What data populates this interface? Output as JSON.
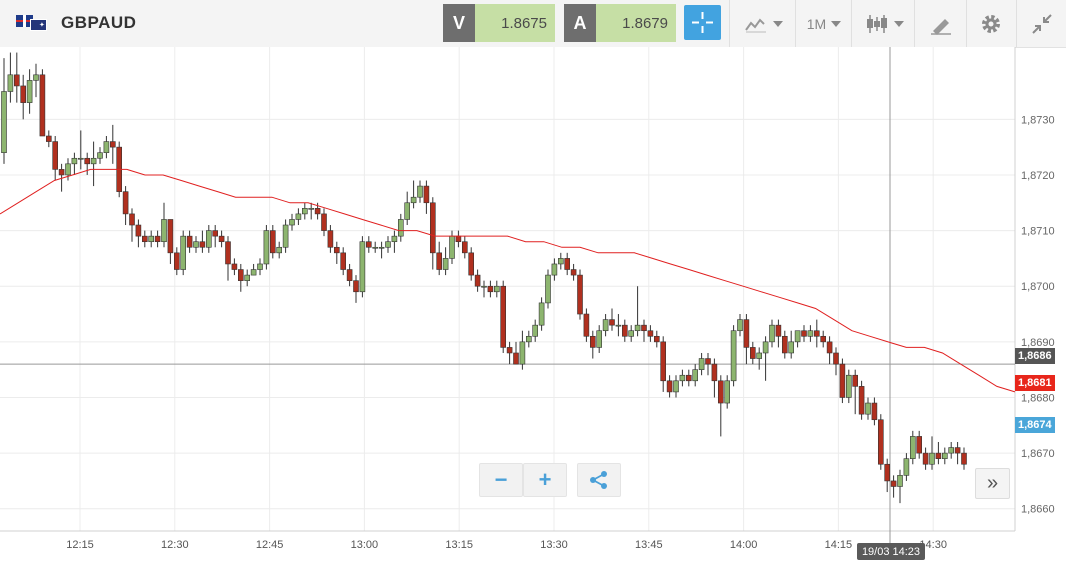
{
  "instrument": {
    "symbol": "GBPAUD",
    "base_flag": "gb-flag-icon",
    "quote_flag": "au-flag-icon"
  },
  "quotes": {
    "sell_label": "V",
    "sell_price": "1.8675",
    "buy_label": "A",
    "buy_price": "1.8679"
  },
  "toolbar": {
    "timeframe_label": "1M",
    "icons": [
      "crosshair-icon",
      "line-chart-icon",
      "candlestick-icon",
      "draw-tool-icon",
      "gear-icon",
      "collapse-icon"
    ]
  },
  "price_labels": {
    "hover": "1,8686",
    "moving_average": "1,8681",
    "last": "1,8674"
  },
  "time_label": "19/03 14:23",
  "colors": {
    "bull": "#8db56f",
    "bear": "#b0301f",
    "ma": "#e02020",
    "accent": "#42a3e0",
    "quote_bg": "#c6dfa5"
  },
  "chart_data": {
    "type": "candlestick",
    "timeframe": "1M",
    "y_ticks": [
      "1,8730",
      "1,8720",
      "1,8710",
      "1,8700",
      "1,8690",
      "1,8680",
      "1,8670",
      "1,8660"
    ],
    "x_ticks": [
      "12:15",
      "12:30",
      "12:45",
      "13:00",
      "13:15",
      "13:30",
      "13:45",
      "14:00",
      "14:15",
      "14:30"
    ],
    "ylim": [
      1.8656,
      1.8743
    ],
    "grid": true,
    "candles": [
      [
        1.8724,
        1.8735,
        1.8722,
        1.8741
      ],
      [
        1.8735,
        1.8738,
        1.8733,
        1.8742
      ],
      [
        1.8738,
        1.8736,
        1.8733,
        1.8742
      ],
      [
        1.8736,
        1.8733,
        1.873,
        1.8738
      ],
      [
        1.8733,
        1.8737,
        1.8731,
        1.8739
      ],
      [
        1.8737,
        1.8738,
        1.8734,
        1.874
      ],
      [
        1.8738,
        1.8727,
        1.8727,
        1.8739
      ],
      [
        1.8727,
        1.8726,
        1.8725,
        1.8728
      ],
      [
        1.8726,
        1.8721,
        1.8719,
        1.8727
      ],
      [
        1.8721,
        1.872,
        1.8717,
        1.8722
      ],
      [
        1.872,
        1.8722,
        1.8719,
        1.8723
      ],
      [
        1.8722,
        1.8723,
        1.872,
        1.8724
      ],
      [
        1.8723,
        1.8723,
        1.8721,
        1.8728
      ],
      [
        1.8723,
        1.8722,
        1.872,
        1.8724
      ],
      [
        1.8722,
        1.8723,
        1.8718,
        1.8726
      ],
      [
        1.8723,
        1.8724,
        1.8722,
        1.8725
      ],
      [
        1.8724,
        1.8726,
        1.8723,
        1.8727
      ],
      [
        1.8726,
        1.8725,
        1.8722,
        1.8729
      ],
      [
        1.8725,
        1.8717,
        1.8716,
        1.8726
      ],
      [
        1.8717,
        1.8713,
        1.8711,
        1.8718
      ],
      [
        1.8713,
        1.8711,
        1.8708,
        1.8714
      ],
      [
        1.8711,
        1.8709,
        1.8707,
        1.8712
      ],
      [
        1.8709,
        1.8708,
        1.8707,
        1.871
      ],
      [
        1.8708,
        1.8709,
        1.8707,
        1.871
      ],
      [
        1.8709,
        1.8708,
        1.8707,
        1.871
      ],
      [
        1.8708,
        1.8712,
        1.8707,
        1.8715
      ],
      [
        1.8712,
        1.8706,
        1.8704,
        1.8712
      ],
      [
        1.8706,
        1.8703,
        1.8702,
        1.8707
      ],
      [
        1.8703,
        1.8709,
        1.8702,
        1.871
      ],
      [
        1.8709,
        1.8707,
        1.8706,
        1.871
      ],
      [
        1.8707,
        1.8708,
        1.8706,
        1.8709
      ],
      [
        1.8708,
        1.8707,
        1.8706,
        1.871
      ],
      [
        1.8707,
        1.871,
        1.8706,
        1.8711
      ],
      [
        1.871,
        1.8709,
        1.8707,
        1.8711
      ],
      [
        1.8709,
        1.8708,
        1.8707,
        1.871
      ],
      [
        1.8708,
        1.8704,
        1.8701,
        1.8709
      ],
      [
        1.8704,
        1.8703,
        1.8702,
        1.8705
      ],
      [
        1.8703,
        1.8701,
        1.8699,
        1.8704
      ],
      [
        1.8701,
        1.8702,
        1.87,
        1.8703
      ],
      [
        1.8702,
        1.8703,
        1.8702,
        1.8704
      ],
      [
        1.8703,
        1.8704,
        1.8702,
        1.8705
      ],
      [
        1.8704,
        1.871,
        1.8703,
        1.8711
      ],
      [
        1.871,
        1.8706,
        1.8705,
        1.8711
      ],
      [
        1.8706,
        1.8707,
        1.8705,
        1.8708
      ],
      [
        1.8707,
        1.8711,
        1.8706,
        1.8712
      ],
      [
        1.8711,
        1.8712,
        1.871,
        1.8713
      ],
      [
        1.8712,
        1.8713,
        1.8711,
        1.8714
      ],
      [
        1.8713,
        1.8714,
        1.8712,
        1.8715
      ],
      [
        1.8714,
        1.8714,
        1.8712,
        1.8715
      ],
      [
        1.8714,
        1.8713,
        1.8712,
        1.8715
      ],
      [
        1.8713,
        1.871,
        1.8709,
        1.8714
      ],
      [
        1.871,
        1.8707,
        1.8706,
        1.8711
      ],
      [
        1.8707,
        1.8706,
        1.8704,
        1.8708
      ],
      [
        1.8706,
        1.8703,
        1.8702,
        1.8707
      ],
      [
        1.8703,
        1.8701,
        1.87,
        1.8704
      ],
      [
        1.8701,
        1.8699,
        1.8697,
        1.8702
      ],
      [
        1.8699,
        1.8708,
        1.8698,
        1.8709
      ],
      [
        1.8708,
        1.8707,
        1.8706,
        1.8709
      ],
      [
        1.8707,
        1.8707,
        1.8706,
        1.8708
      ],
      [
        1.8707,
        1.8707,
        1.8705,
        1.8708
      ],
      [
        1.8707,
        1.8708,
        1.8706,
        1.8709
      ],
      [
        1.8708,
        1.8709,
        1.8706,
        1.871
      ],
      [
        1.8709,
        1.8712,
        1.8708,
        1.8713
      ],
      [
        1.8712,
        1.8715,
        1.8711,
        1.8717
      ],
      [
        1.8715,
        1.8716,
        1.8714,
        1.8719
      ],
      [
        1.8716,
        1.8718,
        1.8715,
        1.8719
      ],
      [
        1.8718,
        1.8715,
        1.8713,
        1.8719
      ],
      [
        1.8715,
        1.8706,
        1.8703,
        1.8716
      ],
      [
        1.8706,
        1.8703,
        1.8702,
        1.8708
      ],
      [
        1.8703,
        1.8705,
        1.8702,
        1.8707
      ],
      [
        1.8705,
        1.8709,
        1.8704,
        1.871
      ],
      [
        1.8709,
        1.8708,
        1.8707,
        1.871
      ],
      [
        1.8708,
        1.8706,
        1.8705,
        1.8709
      ],
      [
        1.8706,
        1.8702,
        1.8701,
        1.8707
      ],
      [
        1.8702,
        1.87,
        1.8699,
        1.8703
      ],
      [
        1.87,
        1.87,
        1.8698,
        1.8701
      ],
      [
        1.87,
        1.8699,
        1.8698,
        1.8701
      ],
      [
        1.8699,
        1.87,
        1.8698,
        1.8701
      ],
      [
        1.87,
        1.8689,
        1.8688,
        1.8701
      ],
      [
        1.8689,
        1.8688,
        1.8686,
        1.869
      ],
      [
        1.8688,
        1.8686,
        1.8686,
        1.869
      ],
      [
        1.8686,
        1.869,
        1.8685,
        1.8692
      ],
      [
        1.869,
        1.8691,
        1.8689,
        1.8692
      ],
      [
        1.8691,
        1.8693,
        1.869,
        1.8694
      ],
      [
        1.8693,
        1.8697,
        1.8692,
        1.8698
      ],
      [
        1.8697,
        1.8702,
        1.8696,
        1.8703
      ],
      [
        1.8702,
        1.8704,
        1.8701,
        1.8705
      ],
      [
        1.8704,
        1.8705,
        1.8703,
        1.8706
      ],
      [
        1.8705,
        1.8703,
        1.8702,
        1.8706
      ],
      [
        1.8703,
        1.8702,
        1.8701,
        1.8704
      ],
      [
        1.8702,
        1.8695,
        1.8694,
        1.8703
      ],
      [
        1.8695,
        1.8691,
        1.869,
        1.8696
      ],
      [
        1.8691,
        1.8689,
        1.8687,
        1.8692
      ],
      [
        1.8689,
        1.8692,
        1.8688,
        1.8693
      ],
      [
        1.8692,
        1.8694,
        1.8691,
        1.8695
      ],
      [
        1.8694,
        1.8693,
        1.8692,
        1.8696
      ],
      [
        1.8693,
        1.8693,
        1.8691,
        1.8695
      ],
      [
        1.8693,
        1.8691,
        1.869,
        1.8694
      ],
      [
        1.8691,
        1.8692,
        1.869,
        1.8693
      ],
      [
        1.8692,
        1.8693,
        1.8691,
        1.87
      ],
      [
        1.8693,
        1.8692,
        1.869,
        1.8694
      ],
      [
        1.8692,
        1.8691,
        1.869,
        1.8693
      ],
      [
        1.8691,
        1.869,
        1.8689,
        1.8692
      ],
      [
        1.869,
        1.8683,
        1.8681,
        1.8691
      ],
      [
        1.8683,
        1.8681,
        1.868,
        1.8684
      ],
      [
        1.8681,
        1.8683,
        1.868,
        1.8684
      ],
      [
        1.8683,
        1.8684,
        1.8682,
        1.8685
      ],
      [
        1.8684,
        1.8683,
        1.8682,
        1.8685
      ],
      [
        1.8683,
        1.8685,
        1.8682,
        1.8686
      ],
      [
        1.8685,
        1.8687,
        1.8684,
        1.8688
      ],
      [
        1.8687,
        1.8686,
        1.8684,
        1.8688
      ],
      [
        1.8686,
        1.8683,
        1.868,
        1.8687
      ],
      [
        1.8683,
        1.8679,
        1.8673,
        1.8684
      ],
      [
        1.8679,
        1.8683,
        1.8678,
        1.8684
      ],
      [
        1.8683,
        1.8692,
        1.8682,
        1.8693
      ],
      [
        1.8692,
        1.8694,
        1.8691,
        1.8695
      ],
      [
        1.8694,
        1.8689,
        1.8686,
        1.8695
      ],
      [
        1.8689,
        1.8687,
        1.8686,
        1.869
      ],
      [
        1.8687,
        1.8688,
        1.8685,
        1.8689
      ],
      [
        1.8688,
        1.869,
        1.8683,
        1.8691
      ],
      [
        1.869,
        1.8693,
        1.8689,
        1.8694
      ],
      [
        1.8693,
        1.8691,
        1.8689,
        1.8694
      ],
      [
        1.8691,
        1.8688,
        1.8687,
        1.8692
      ],
      [
        1.8688,
        1.869,
        1.8687,
        1.8692
      ],
      [
        1.869,
        1.8692,
        1.8689,
        1.8692
      ],
      [
        1.8692,
        1.8691,
        1.869,
        1.8693
      ],
      [
        1.8691,
        1.8692,
        1.869,
        1.8693
      ],
      [
        1.8692,
        1.8691,
        1.8689,
        1.8694
      ],
      [
        1.8691,
        1.869,
        1.8689,
        1.8692
      ],
      [
        1.869,
        1.8688,
        1.8686,
        1.8691
      ],
      [
        1.8688,
        1.8686,
        1.8684,
        1.8689
      ],
      [
        1.8686,
        1.868,
        1.8679,
        1.8687
      ],
      [
        1.868,
        1.8684,
        1.8679,
        1.8685
      ],
      [
        1.8684,
        1.8682,
        1.8677,
        1.8685
      ],
      [
        1.8682,
        1.8677,
        1.8676,
        1.8683
      ],
      [
        1.8677,
        1.8679,
        1.8676,
        1.868
      ],
      [
        1.8679,
        1.8676,
        1.8675,
        1.868
      ],
      [
        1.8676,
        1.8668,
        1.8667,
        1.8677
      ],
      [
        1.8668,
        1.8665,
        1.8663,
        1.8669
      ],
      [
        1.8665,
        1.8664,
        1.8662,
        1.8666
      ],
      [
        1.8664,
        1.8666,
        1.8661,
        1.8667
      ],
      [
        1.8666,
        1.8669,
        1.8665,
        1.867
      ],
      [
        1.8669,
        1.8673,
        1.8668,
        1.8674
      ],
      [
        1.8673,
        1.867,
        1.8669,
        1.8674
      ],
      [
        1.867,
        1.8668,
        1.8667,
        1.8671
      ],
      [
        1.8668,
        1.867,
        1.8667,
        1.8673
      ],
      [
        1.867,
        1.8669,
        1.8668,
        1.8672
      ],
      [
        1.8669,
        1.867,
        1.8668,
        1.8671
      ],
      [
        1.867,
        1.8671,
        1.8669,
        1.8672
      ],
      [
        1.8671,
        1.867,
        1.8668,
        1.8672
      ],
      [
        1.867,
        1.8668,
        1.8667,
        1.8671
      ]
    ],
    "moving_average": [
      1.8713,
      1.8715,
      1.8717,
      1.8719,
      1.872,
      1.8721,
      1.8721,
      1.8721,
      1.872,
      1.872,
      1.8719,
      1.8718,
      1.8717,
      1.8716,
      1.8716,
      1.8716,
      1.8715,
      1.8715,
      1.8714,
      1.8713,
      1.8712,
      1.8711,
      1.871,
      1.871,
      1.8709,
      1.8709,
      1.8709,
      1.8709,
      1.8709,
      1.8708,
      1.8708,
      1.8707,
      1.8707,
      1.8706,
      1.8706,
      1.8706,
      1.8705,
      1.8704,
      1.8703,
      1.8702,
      1.8701,
      1.87,
      1.8699,
      1.8698,
      1.8697,
      1.8696,
      1.8694,
      1.8692,
      1.8691,
      1.869,
      1.8689,
      1.8689,
      1.8688,
      1.8686,
      1.8684,
      1.8682,
      1.8681
    ],
    "last_price": 1.8674,
    "hover_price": 1.8686,
    "hover_time": "19/03 14:23"
  }
}
